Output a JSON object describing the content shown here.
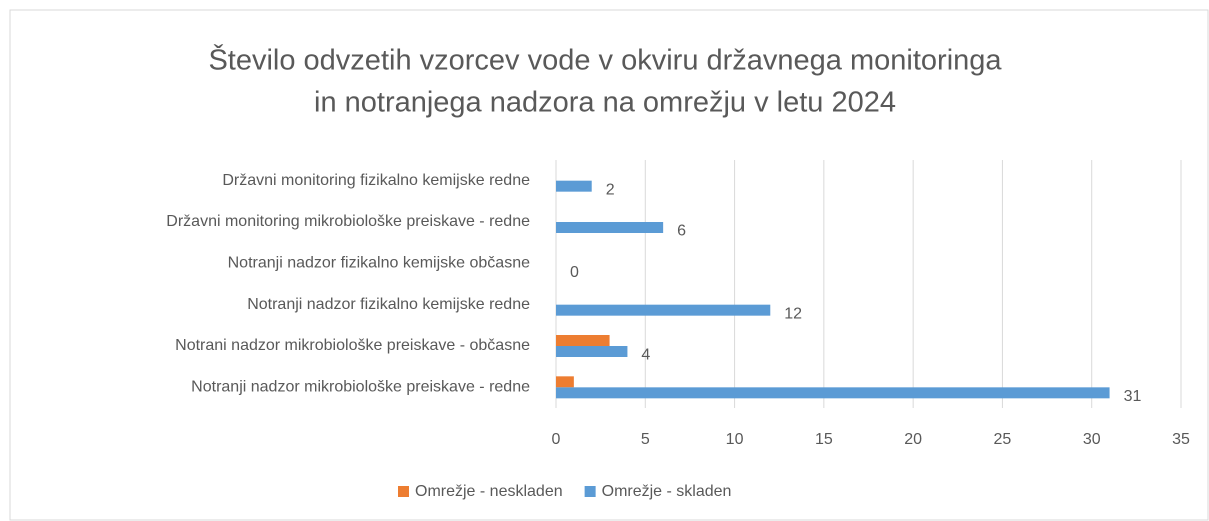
{
  "chart_data": {
    "type": "barh",
    "title": [
      "Število odvzetih vzorcev vode v okviru državnega monitoringa",
      "in notranjega nadzora na omrežju v letu 2024"
    ],
    "categories": [
      "Državni monitoring fizikalno kemijske redne",
      "Državni monitoring mikrobiološke preiskave - redne",
      "Notranji nadzor fizikalno kemijske občasne",
      "Notranji nadzor fizikalno kemijske redne",
      "Notrani nadzor mikrobiološke preiskave - občasne",
      "Notranji nadzor mikrobiološke preiskave - redne"
    ],
    "series": [
      {
        "name": "Omrežje - neskladen",
        "color": "#ed7d31",
        "values": [
          0,
          0,
          0,
          0,
          3,
          1
        ]
      },
      {
        "name": "Omrežje - skladen",
        "color": "#5b9bd5",
        "values": [
          2,
          6,
          0,
          12,
          4,
          31
        ]
      }
    ],
    "xlim": [
      0,
      35
    ],
    "xticks": [
      0,
      5,
      10,
      15,
      20,
      25,
      30,
      35
    ],
    "grid": true,
    "legend": "bottom"
  }
}
